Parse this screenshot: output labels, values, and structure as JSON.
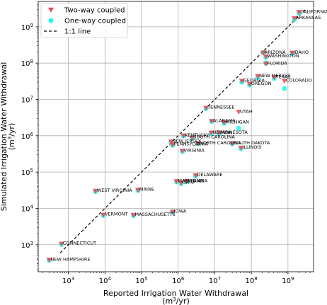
{
  "chart_data": {
    "type": "scatter",
    "xlabel": "Reported Irrigation Water Withdrawal",
    "xunit": "(m",
    "xunit_sup": "3",
    "xunit_tail": "/yr)",
    "ylabel": "Simulated Irrigation Water Withdrawal",
    "yunit": "(m",
    "yunit_sup": "3",
    "yunit_tail": "/yr)",
    "xscale": "log",
    "yscale": "log",
    "xlim": [
      150,
      5000000000
    ],
    "ylim": [
      180,
      5000000000
    ],
    "x_ticks": [
      {
        "value": 1000,
        "base": "10",
        "exp": "3"
      },
      {
        "value": 10000,
        "base": "10",
        "exp": "4"
      },
      {
        "value": 100000,
        "base": "10",
        "exp": "5"
      },
      {
        "value": 1000000,
        "base": "10",
        "exp": "6"
      },
      {
        "value": 10000000,
        "base": "10",
        "exp": "7"
      },
      {
        "value": 100000000,
        "base": "10",
        "exp": "8"
      },
      {
        "value": 1000000000,
        "base": "10",
        "exp": "9"
      }
    ],
    "y_ticks": [
      {
        "value": 1000,
        "base": "10",
        "exp": "3"
      },
      {
        "value": 10000,
        "base": "10",
        "exp": "4"
      },
      {
        "value": 100000,
        "base": "10",
        "exp": "5"
      },
      {
        "value": 1000000,
        "base": "10",
        "exp": "6"
      },
      {
        "value": 10000000,
        "base": "10",
        "exp": "7"
      },
      {
        "value": 100000000,
        "base": "10",
        "exp": "8"
      },
      {
        "value": 1000000000,
        "base": "10",
        "exp": "9"
      }
    ],
    "grid": true,
    "legend": {
      "placement": "top-left",
      "entries": [
        {
          "label": "Two-way coupled",
          "kind": "triangle",
          "color": "#f0444c"
        },
        {
          "label": "One-way coupled",
          "kind": "circle",
          "color": "#33f5f0"
        },
        {
          "label": "1:1 line",
          "kind": "dashed-line",
          "color": "#000000"
        }
      ]
    },
    "colors": {
      "two_way": "#f0444c",
      "one_way": "#33f5f0",
      "one_to_one": "#000000"
    },
    "series": [
      {
        "name": "Two-way coupled",
        "marker": "triangle-down",
        "points": [
          {
            "state": "CALIFORNIA",
            "x": 2000000000,
            "y": 2500000000
          },
          {
            "state": "ARKANSAS",
            "x": 1500000000,
            "y": 1700000000
          },
          {
            "state": "IDAHO",
            "x": 1300000000,
            "y": 190000000
          },
          {
            "state": "ARIZONA",
            "x": 210000000,
            "y": 190000000
          },
          {
            "state": "WASHINGTON",
            "x": 250000000,
            "y": 150000000
          },
          {
            "state": "FLORIDA",
            "x": 250000000,
            "y": 95000000
          },
          {
            "state": "NEW MEXICO",
            "x": 150000000,
            "y": 43000000
          },
          {
            "state": "TEXAS",
            "x": 420000000,
            "y": 40000000
          },
          {
            "state": "COLORADO",
            "x": 800000000,
            "y": 32000000
          },
          {
            "state": "GEORGIA",
            "x": 55000000,
            "y": 32000000
          },
          {
            "state": "OREGON",
            "x": 90000000,
            "y": 26000000
          },
          {
            "state": "TENNESSEE",
            "x": 5800000,
            "y": 5800000
          },
          {
            "state": "UTAH",
            "x": 45000000,
            "y": 4500000
          },
          {
            "state": "ALABAMA",
            "x": 8200000,
            "y": 2500000
          },
          {
            "state": "MICHIGAN",
            "x": 18000000,
            "y": 2300000
          },
          {
            "state": "NEVADA",
            "x": 8000000,
            "y": 1200000
          },
          {
            "state": "MINNESOTA",
            "x": 13000000,
            "y": 1200000
          },
          {
            "state": "KENTUCKY",
            "x": 1400000,
            "y": 1000000
          },
          {
            "state": "SOUTH CAROLINA",
            "x": 2400000,
            "y": 880000
          },
          {
            "state": "NEW JERSEY",
            "x": 640000,
            "y": 680000
          },
          {
            "state": "PENNSYLVANIA",
            "x": 700000,
            "y": 560000
          },
          {
            "state": "NORTH CAROLINA",
            "x": 3500000,
            "y": 610000
          },
          {
            "state": "SOUTH DAKOTA",
            "x": 30000000,
            "y": 610000
          },
          {
            "state": "ILLINOIS",
            "x": 52000000,
            "y": 460000
          },
          {
            "state": "VIRGINIA",
            "x": 1300000,
            "y": 380000
          },
          {
            "state": "DELAWARE",
            "x": 3000000,
            "y": 80000
          },
          {
            "state": "MARYLAND",
            "x": 900000,
            "y": 55000
          },
          {
            "state": "OHIO",
            "x": 1200000,
            "y": 50000
          },
          {
            "state": "INDIANA",
            "x": 1700000,
            "y": 55000
          },
          {
            "state": "WEST VIRGINIA",
            "x": 5500,
            "y": 30000
          },
          {
            "state": "MAINE",
            "x": 80000,
            "y": 32000
          },
          {
            "state": "IOWA",
            "x": 700000,
            "y": 8000
          },
          {
            "state": "VERMONT",
            "x": 9000,
            "y": 6600
          },
          {
            "state": "MASSACHUSETTS",
            "x": 60000,
            "y": 6500
          },
          {
            "state": "CONNECTICUT",
            "x": 650,
            "y": 1050
          },
          {
            "state": "NEW HAMPSHIRE",
            "x": 300,
            "y": 380
          }
        ]
      },
      {
        "name": "One-way coupled",
        "marker": "circle",
        "points": [
          {
            "x": 2000000000,
            "y": 2400000000
          },
          {
            "x": 1500000000,
            "y": 1600000000
          },
          {
            "x": 1300000000,
            "y": 185000000
          },
          {
            "x": 210000000,
            "y": 195000000
          },
          {
            "x": 250000000,
            "y": 145000000
          },
          {
            "x": 250000000,
            "y": 100000000
          },
          {
            "x": 150000000,
            "y": 40000000
          },
          {
            "x": 420000000,
            "y": 38000000
          },
          {
            "x": 800000000,
            "y": 20000000
          },
          {
            "x": 55000000,
            "y": 30000000
          },
          {
            "x": 90000000,
            "y": 25000000
          },
          {
            "x": 5800000,
            "y": 5600000
          },
          {
            "x": 45000000,
            "y": 1600000
          },
          {
            "x": 8200000,
            "y": 2500000
          },
          {
            "x": 18000000,
            "y": 2200000
          },
          {
            "x": 8000000,
            "y": 1150000
          },
          {
            "x": 13000000,
            "y": 1150000
          },
          {
            "x": 1400000,
            "y": 980000
          },
          {
            "x": 2400000,
            "y": 860000
          },
          {
            "x": 640000,
            "y": 660000
          },
          {
            "x": 700000,
            "y": 550000
          },
          {
            "x": 3500000,
            "y": 600000
          },
          {
            "x": 30000000,
            "y": 600000
          },
          {
            "x": 52000000,
            "y": 440000
          },
          {
            "x": 1300000,
            "y": 370000
          },
          {
            "x": 3000000,
            "y": 78000
          },
          {
            "x": 900000,
            "y": 54000
          },
          {
            "x": 1200000,
            "y": 48000
          },
          {
            "x": 1700000,
            "y": 54000
          },
          {
            "x": 5500,
            "y": 29000
          },
          {
            "x": 80000,
            "y": 31000
          },
          {
            "x": 700000,
            "y": 7800
          },
          {
            "x": 9000,
            "y": 6400
          },
          {
            "x": 60000,
            "y": 6300
          },
          {
            "x": 650,
            "y": 1020
          },
          {
            "x": 300,
            "y": 370
          }
        ]
      }
    ],
    "one_to_one_line": {
      "from": 600,
      "to": 3000000000
    }
  }
}
